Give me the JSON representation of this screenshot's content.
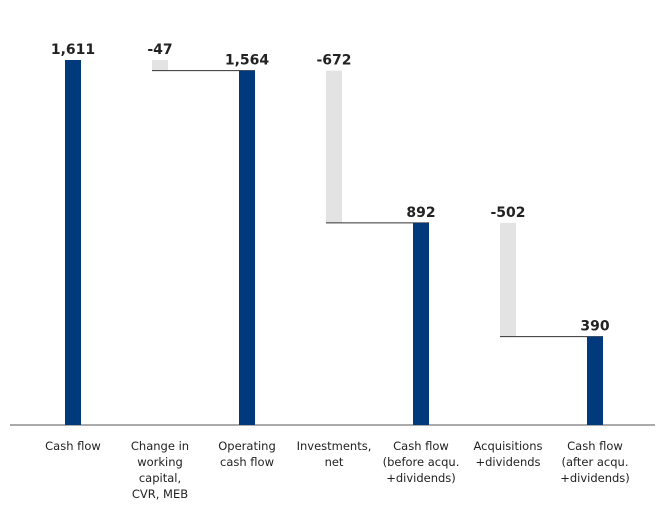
{
  "chart_data": {
    "type": "waterfall",
    "categories": [
      "Cash flow",
      "Change in\nworking\ncapital,\nCVR, MEB",
      "Operating\ncash flow",
      "Investments,\nnet",
      "Cash flow\n(before acqu.\n+dividends)",
      "Acquisitions\n+dividends",
      "Cash flow\n(after acqu.\n+dividends)"
    ],
    "values": [
      1611,
      -47,
      1564,
      -672,
      892,
      -502,
      390
    ],
    "value_labels": [
      "1,611",
      "-47",
      "1,564",
      "-672",
      "892",
      "-502",
      "390"
    ],
    "color": "#003a7d",
    "change_color": "#e3e3e3"
  }
}
